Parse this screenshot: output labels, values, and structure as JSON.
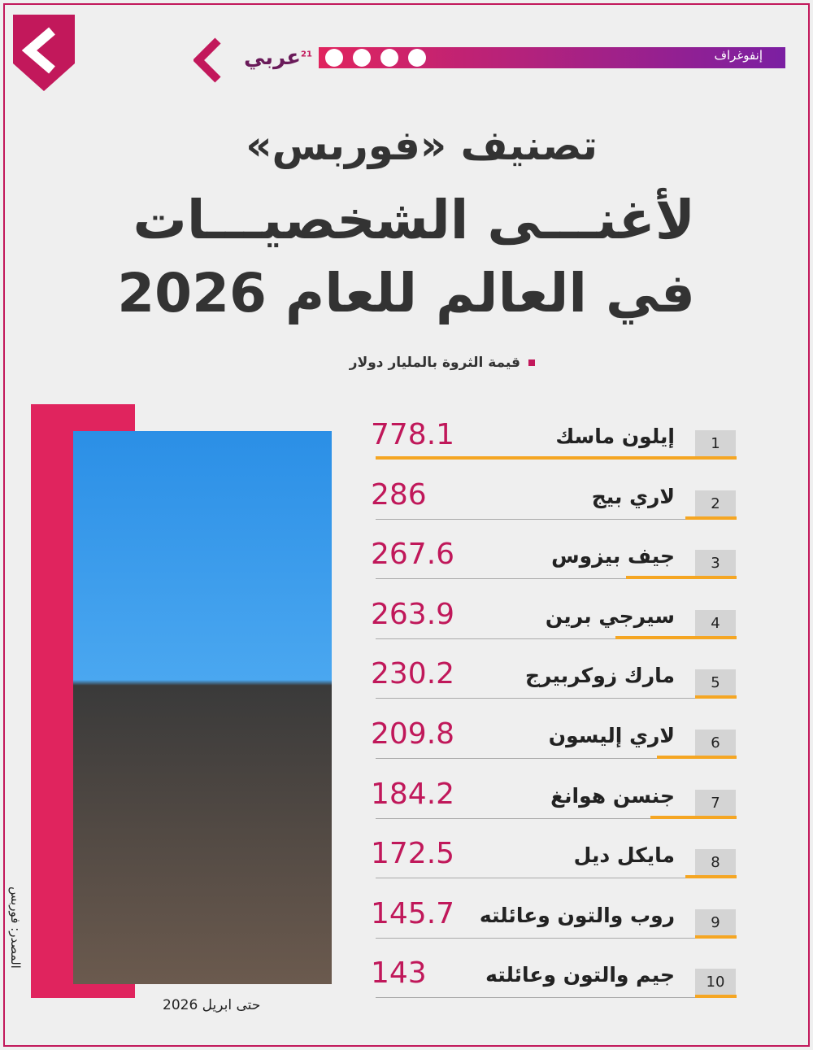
{
  "header": {
    "section": "إنفوغراف",
    "brand": "عربي",
    "brand_sup": "21"
  },
  "title": {
    "line1": "تصنيف «فوربس»",
    "line2": "لأغنـــى الشخصيـــات",
    "line3": "في العالم للعام 2026"
  },
  "subtitle": "قيمة الثروة بالمليار دولار",
  "table": {
    "rows": [
      [
        1,
        "إيلون ماسك",
        778.1
      ],
      [
        2,
        "لاري بيج",
        286
      ],
      [
        3,
        "جيف بيزوس",
        267.6
      ],
      [
        4,
        "سيرجي برين",
        263.9
      ],
      [
        5,
        "مارك زوكربيرج",
        230.2
      ],
      [
        6,
        "لاري إليسون",
        209.8
      ],
      [
        7,
        "جنسن هوانغ",
        184.2
      ],
      [
        8,
        "مايكل ديل",
        172.5
      ],
      [
        9,
        "روب والتون وعائلته",
        145.7
      ],
      [
        10,
        "جيم والتون وعائلته",
        143
      ]
    ]
  },
  "footer": {
    "as_of": "حتى ابريل 2026",
    "source": "المصدر: فوربس"
  }
}
